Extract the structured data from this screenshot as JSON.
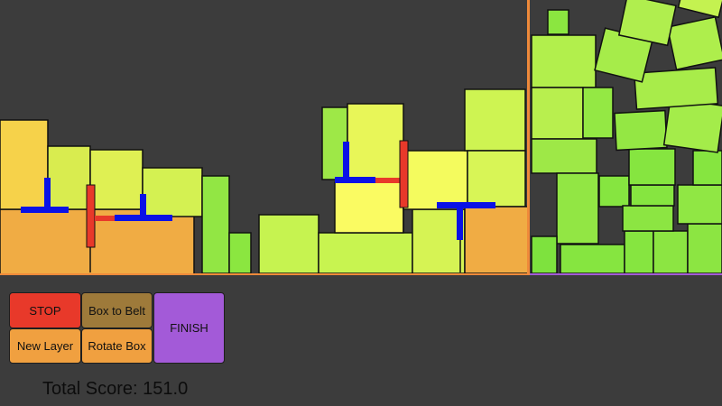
{
  "controls": {
    "stop": "STOP",
    "box_to_belt": "Box to Belt",
    "finish": "FINISH",
    "new_layer": "New Layer",
    "rotate_box": "Rotate Box"
  },
  "score": {
    "label": "Total Score: 151.0"
  },
  "colors": {
    "background": "#3c3c3c",
    "stop": "#e8392a",
    "box_to_belt": "#9e7a3a",
    "finish": "#a35ad8",
    "new_layer": "#f0a040",
    "rotate_box": "#f0a040",
    "divider_orange": "#ef8a3a",
    "divider_purple": "#a35ad8",
    "gripper_blue": "#0a12e6",
    "gripper_red": "#e8392a"
  }
}
